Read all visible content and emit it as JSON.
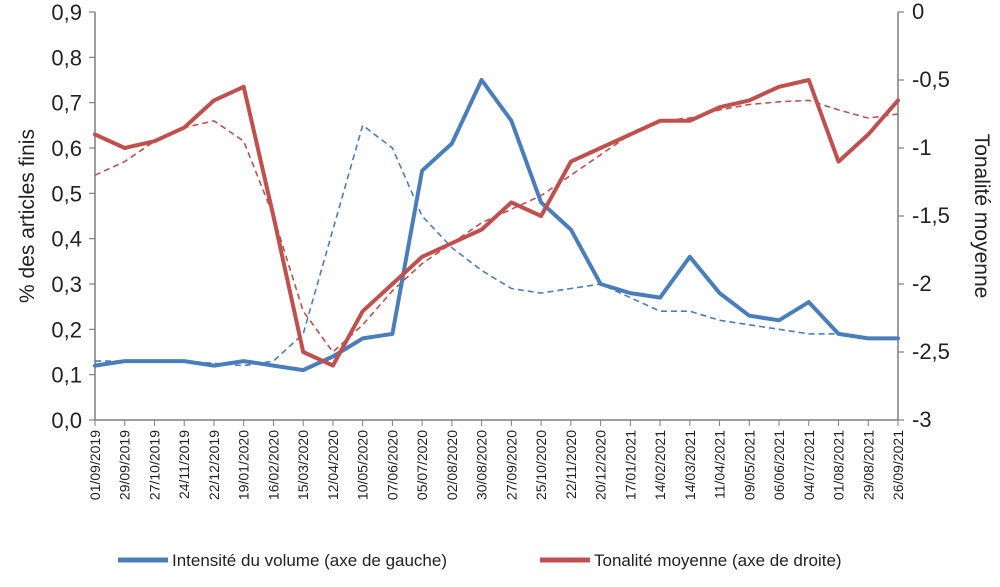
{
  "chart_data": {
    "type": "line",
    "title": "",
    "y_left": {
      "label": "% des articles finis",
      "lim": [
        0,
        0.9
      ],
      "ticks": [
        "0,0",
        "0,1",
        "0,2",
        "0,3",
        "0,4",
        "0,5",
        "0,6",
        "0,7",
        "0,8",
        "0,9"
      ]
    },
    "y_right": {
      "label": "Tonalité moyenne",
      "lim": [
        -3,
        0
      ],
      "ticks": [
        "-3",
        "-2,5",
        "-2",
        "-1,5",
        "-1",
        "-0,5",
        "0"
      ]
    },
    "x_ticks": [
      "01/09/2019",
      "29/09/2019",
      "27/10/2019",
      "24/11/2019",
      "22/12/2019",
      "19/01/2020",
      "16/02/2020",
      "15/03/2020",
      "12/04/2020",
      "10/05/2020",
      "07/06/2020",
      "05/07/2020",
      "02/08/2020",
      "30/08/2020",
      "27/09/2020",
      "25/10/2020",
      "22/11/2020",
      "20/12/2020",
      "17/01/2021",
      "14/02/2021",
      "14/03/2021",
      "11/04/2021",
      "09/05/2021",
      "06/06/2021",
      "04/07/2021",
      "01/08/2021",
      "29/08/2021",
      "26/09/2021"
    ],
    "grid": false,
    "legend": "bottom",
    "series": [
      {
        "name": "Intensité du volume (axe de gauche)",
        "axis": "left",
        "color": "#4a7ebb",
        "x_index": [
          0,
          1,
          2,
          3,
          4,
          5,
          6,
          7,
          8,
          9,
          10,
          11,
          12,
          13,
          14,
          15,
          16,
          17,
          18,
          19,
          20,
          21,
          22,
          23,
          24,
          25,
          26,
          27
        ],
        "values": [
          0.12,
          0.13,
          0.13,
          0.13,
          0.12,
          0.13,
          0.12,
          0.11,
          0.14,
          0.18,
          0.19,
          0.55,
          0.61,
          0.75,
          0.66,
          0.48,
          0.42,
          0.3,
          0.28,
          0.27,
          0.36,
          0.28,
          0.23,
          0.22,
          0.26,
          0.19,
          0.18,
          0.18
        ]
      },
      {
        "name": "Tonalité moyenne (axe de droite)",
        "axis": "right",
        "color": "#c0504d",
        "x_index": [
          0,
          1,
          2,
          3,
          4,
          5,
          6,
          7,
          8,
          9,
          10,
          11,
          12,
          13,
          14,
          15,
          16,
          17,
          18,
          19,
          20,
          21,
          22,
          23,
          24,
          25,
          26,
          27
        ],
        "values": [
          -0.9,
          -1.0,
          -0.95,
          -0.85,
          -0.65,
          -0.55,
          -1.5,
          -2.5,
          -2.6,
          -2.2,
          -2.0,
          -1.8,
          -1.7,
          -1.6,
          -1.4,
          -1.5,
          -1.1,
          -1.0,
          -0.9,
          -0.8,
          -0.8,
          -0.7,
          -0.65,
          -0.55,
          -0.5,
          -1.1,
          -0.9,
          -0.65
        ]
      }
    ],
    "trend_lines": [
      {
        "series": "Intensité du volume (axe de gauche)",
        "style": "dashed",
        "values": [
          0.13,
          0.13,
          0.13,
          0.13,
          0.125,
          0.12,
          0.13,
          0.19,
          0.42,
          0.65,
          0.6,
          0.45,
          0.38,
          0.33,
          0.29,
          0.28,
          0.29,
          0.3,
          0.27,
          0.24,
          0.24,
          0.22,
          0.21,
          0.2,
          0.19,
          0.19,
          0.18,
          0.18
        ]
      },
      {
        "series": "Tonalité moyenne (axe de droite)",
        "style": "dashed",
        "values": [
          -1.2,
          -1.1,
          -0.95,
          -0.85,
          -0.8,
          -0.95,
          -1.5,
          -2.2,
          -2.5,
          -2.3,
          -2.05,
          -1.85,
          -1.7,
          -1.55,
          -1.45,
          -1.35,
          -1.2,
          -1.05,
          -0.9,
          -0.8,
          -0.78,
          -0.72,
          -0.68,
          -0.66,
          -0.65,
          -0.72,
          -0.78,
          -0.75
        ]
      }
    ]
  }
}
